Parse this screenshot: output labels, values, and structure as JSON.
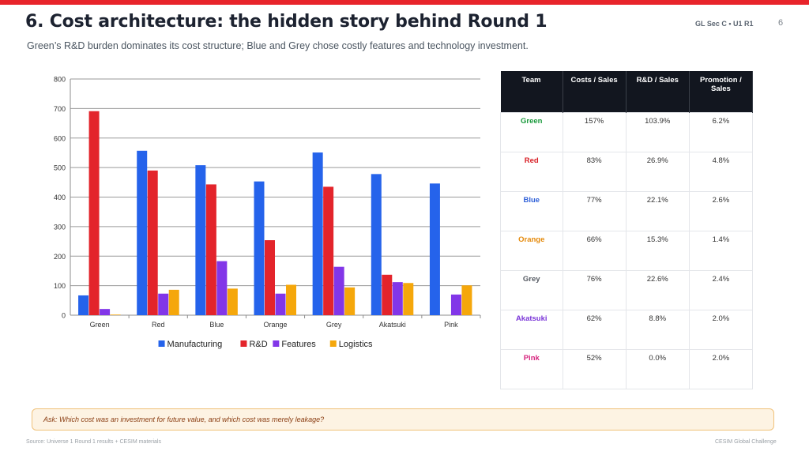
{
  "header": {
    "title": "6. Cost architecture: the hidden story behind Round 1",
    "subtitle": "Green’s R&D burden dominates its cost structure; Blue and Grey chose costly features and technology investment.",
    "tag": "GL Sec C • U1 R1",
    "page_number": "6"
  },
  "chart_data": {
    "type": "bar",
    "categories": [
      "Green",
      "Red",
      "Blue",
      "Orange",
      "Grey",
      "Akatsuki",
      "Pink"
    ],
    "series": [
      {
        "name": "Manufacturing",
        "color": "#2563eb",
        "values": [
          67,
          557,
          508,
          453,
          551,
          478,
          446
        ]
      },
      {
        "name": "R&D",
        "color": "#e3242b",
        "values": [
          691,
          490,
          443,
          254,
          435,
          137,
          0
        ]
      },
      {
        "name": "Features",
        "color": "#8236e8",
        "values": [
          21,
          73,
          183,
          73,
          164,
          112,
          70
        ]
      },
      {
        "name": "Logistics",
        "color": "#f5a70b",
        "values": [
          2,
          86,
          90,
          103,
          94,
          109,
          101
        ]
      }
    ],
    "ylim": [
      0,
      800
    ],
    "yticks": [
      "0",
      "100",
      "200",
      "300",
      "400",
      "500",
      "600",
      "700",
      "800"
    ],
    "grid": true,
    "legend_position": "bottom",
    "title": "",
    "xlabel": "",
    "ylabel": ""
  },
  "table": {
    "headers": [
      "Team",
      "Costs / Sales",
      "R&D / Sales",
      "Promotion / Sales"
    ],
    "rows": [
      {
        "team": "Green",
        "color": "#1a9a3c",
        "cells": [
          "157%",
          "103.9%",
          "6.2%"
        ]
      },
      {
        "team": "Red",
        "color": "#d81f26",
        "cells": [
          "83%",
          "26.9%",
          "4.8%"
        ]
      },
      {
        "team": "Blue",
        "color": "#2e5fd8",
        "cells": [
          "77%",
          "22.1%",
          "2.6%"
        ]
      },
      {
        "team": "Orange",
        "color": "#e58a0c",
        "cells": [
          "66%",
          "15.3%",
          "1.4%"
        ]
      },
      {
        "team": "Grey",
        "color": "#555a62",
        "cells": [
          "76%",
          "22.6%",
          "2.4%"
        ]
      },
      {
        "team": "Akatsuki",
        "color": "#7a35d8",
        "cells": [
          "62%",
          "8.8%",
          "2.0%"
        ]
      },
      {
        "team": "Pink",
        "color": "#d6247e",
        "cells": [
          "52%",
          "0.0%",
          "2.0%"
        ]
      }
    ]
  },
  "question": "Ask: Which cost was an investment for future value, and which cost was merely leakage?",
  "footer": {
    "source": "Source: Universe 1 Round 1 results + CESIM materials",
    "brand": "CESIM Global Challenge"
  },
  "colors": {
    "accent": "#e8242b",
    "table_header": "#12161f",
    "question_bg": "#fdf3e3",
    "question_border": "#f0c27a"
  }
}
